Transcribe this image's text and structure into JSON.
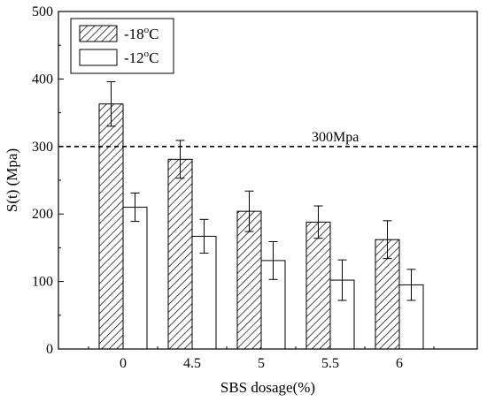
{
  "chart_data": {
    "type": "bar",
    "categories": [
      "0",
      "4.5",
      "5",
      "5.5",
      "6"
    ],
    "series": [
      {
        "name_prefix": "-18",
        "name_sup": "o",
        "name_suffix": "C",
        "pattern": "hatched",
        "values": [
          363,
          281,
          204,
          188,
          162
        ],
        "errors": [
          33,
          28,
          30,
          24,
          28
        ]
      },
      {
        "name_prefix": "-12",
        "name_sup": "o",
        "name_suffix": "C",
        "pattern": "white",
        "values": [
          210,
          167,
          131,
          102,
          95
        ],
        "errors": [
          21,
          25,
          28,
          30,
          23
        ]
      }
    ],
    "xlabel": "SBS dosage(%)",
    "ylabel": "S(t) (Mpa)",
    "ylim": [
      0,
      500
    ],
    "yticks": [
      0,
      100,
      200,
      300,
      400,
      500
    ],
    "reference_line": {
      "value": 300,
      "label": "300Mpa",
      "style": "dashed"
    },
    "legend_position": "top-left",
    "grid": false
  }
}
